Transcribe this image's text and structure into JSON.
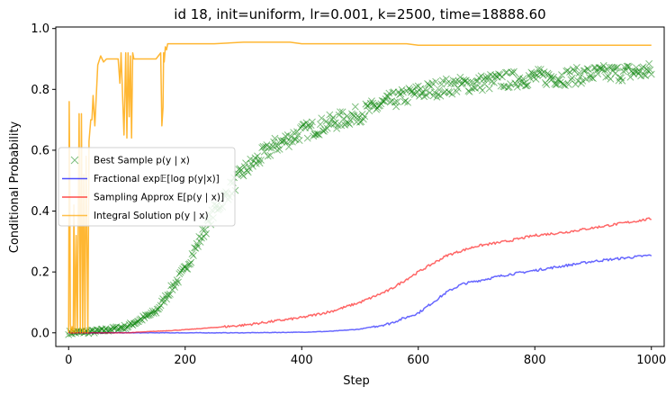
{
  "chart_data": {
    "type": "line",
    "title": "id 18, init=uniform, lr=0.001, k=2500, time=18888.60",
    "xlabel": "Step",
    "ylabel": "Conditional Probability",
    "xlim": [
      -22,
      1022
    ],
    "ylim": [
      -0.045,
      1.005
    ],
    "xticks": [
      0,
      200,
      400,
      600,
      800,
      1000
    ],
    "yticks": [
      0.0,
      0.2,
      0.4,
      0.6,
      0.8,
      1.0
    ],
    "grid": false,
    "legend_position": "center-left",
    "series": [
      {
        "name": "Best Sample p(y | x)",
        "kind": "markers",
        "marker": "x",
        "color": "#008000",
        "alpha": 0.5,
        "x": [
          0,
          50,
          100,
          150,
          200,
          250,
          300,
          350,
          400,
          450,
          500,
          550,
          600,
          650,
          700,
          750,
          800,
          850,
          900,
          950,
          1000
        ],
        "y": [
          0.0,
          0.005,
          0.02,
          0.07,
          0.21,
          0.4,
          0.53,
          0.61,
          0.66,
          0.69,
          0.72,
          0.76,
          0.79,
          0.81,
          0.82,
          0.83,
          0.84,
          0.84,
          0.85,
          0.855,
          0.86
        ]
      },
      {
        "name": "Fractional exp𝔼[log p(y|x)]",
        "kind": "line",
        "color": "#0000ff",
        "alpha": 0.6,
        "x": [
          0,
          100,
          200,
          300,
          400,
          450,
          500,
          550,
          600,
          625,
          650,
          675,
          700,
          750,
          800,
          850,
          900,
          950,
          1000
        ],
        "y": [
          0.0,
          0.0,
          0.0,
          0.0,
          0.002,
          0.005,
          0.012,
          0.03,
          0.065,
          0.1,
          0.135,
          0.16,
          0.17,
          0.19,
          0.205,
          0.22,
          0.235,
          0.245,
          0.255
        ]
      },
      {
        "name": "Sampling Approx E[p(y | x)]",
        "kind": "line",
        "color": "#ff0000",
        "alpha": 0.6,
        "x": [
          0,
          100,
          200,
          300,
          400,
          450,
          500,
          550,
          600,
          650,
          700,
          750,
          800,
          850,
          900,
          950,
          1000
        ],
        "y": [
          0.0,
          0.0,
          0.01,
          0.025,
          0.05,
          0.07,
          0.1,
          0.14,
          0.2,
          0.255,
          0.285,
          0.3,
          0.32,
          0.33,
          0.345,
          0.36,
          0.375
        ]
      },
      {
        "name": "Integral Solution p(y | x)",
        "kind": "line",
        "color": "#ffa500",
        "alpha": 0.8,
        "x": [
          0,
          1,
          2,
          3,
          4,
          6,
          8,
          9,
          11,
          13,
          15,
          18,
          20,
          22,
          24,
          26,
          28,
          30,
          33,
          35,
          38,
          40,
          42,
          45,
          50,
          55,
          60,
          65,
          70,
          75,
          80,
          85,
          88,
          90,
          95,
          98,
          100,
          102,
          104,
          106,
          108,
          110,
          112,
          115,
          120,
          130,
          140,
          150,
          158,
          160,
          162,
          163,
          164,
          166,
          168,
          170,
          180,
          200,
          250,
          300,
          340,
          380,
          400,
          500,
          580,
          600,
          700,
          800,
          900,
          1000
        ],
        "y": [
          0.0,
          0.76,
          0.5,
          0.03,
          0.0,
          0.02,
          0.0,
          0.42,
          0.0,
          0.32,
          0.0,
          0.72,
          0.0,
          0.72,
          0.0,
          0.52,
          0.0,
          0.58,
          0.0,
          0.63,
          0.7,
          0.7,
          0.78,
          0.68,
          0.88,
          0.91,
          0.89,
          0.9,
          0.9,
          0.9,
          0.9,
          0.9,
          0.82,
          0.92,
          0.65,
          0.92,
          0.64,
          0.92,
          0.71,
          0.91,
          0.64,
          0.92,
          0.9,
          0.9,
          0.9,
          0.9,
          0.9,
          0.9,
          0.92,
          0.68,
          0.74,
          0.92,
          0.89,
          0.94,
          0.93,
          0.95,
          0.95,
          0.95,
          0.95,
          0.955,
          0.955,
          0.955,
          0.95,
          0.95,
          0.95,
          0.945,
          0.945,
          0.945,
          0.945,
          0.945
        ]
      }
    ]
  },
  "legend": [
    {
      "label": "Best Sample p(y | x)",
      "marker": "x",
      "color": "#008000"
    },
    {
      "label": "Fractional exp𝔼[log p(y|x)]",
      "marker": "line",
      "color": "#0000ff"
    },
    {
      "label": "Sampling Approx E[p(y | x)]",
      "marker": "line",
      "color": "#ff0000"
    },
    {
      "label": "Integral Solution p(y | x)",
      "marker": "line",
      "color": "#ffa500"
    }
  ]
}
